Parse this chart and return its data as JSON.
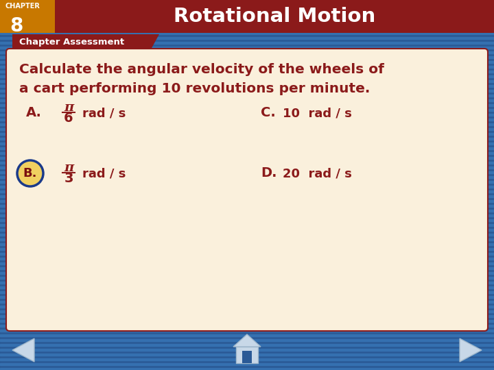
{
  "title": "Rotational Motion",
  "chapter_label": "CHAPTER",
  "chapter_number": "8",
  "section_label": "Chapter Assessment",
  "question_line1": "Calculate the angular velocity of the wheels of",
  "question_line2": "a cart performing 10 revolutions per minute.",
  "option_A_label": "A.",
  "option_A_fraction_num": "π",
  "option_A_fraction_den": "6",
  "option_A_text": "rad / s",
  "option_B_label": "B.",
  "option_B_fraction_num": "π",
  "option_B_fraction_den": "3",
  "option_B_text": "rad / s",
  "option_C_label": "C.",
  "option_C_text": "10  rad / s",
  "option_D_label": "D.",
  "option_D_text": "20  rad / s",
  "correct_answer": "B",
  "bg_color_dark": "#2a5a96",
  "bg_color_stripe": "#3570b0",
  "header_bg_color": "#8b1a1a",
  "chapter_box_color": "#c87800",
  "section_tab_color": "#8b1a1a",
  "card_bg_color": "#faf0dc",
  "card_border_color": "#8b1a1a",
  "title_text_color": "#ffffff",
  "chapter_text_color": "#ffffff",
  "question_text_color": "#8b1a1a",
  "option_text_color": "#8b1a1a",
  "correct_circle_border": "#1a3a8a",
  "correct_circle_fill": "#f0d060",
  "correct_label_color": "#7a1010",
  "nav_arrow_color": "#c8d8e8",
  "nav_arrow_border": "#a0b8cc"
}
